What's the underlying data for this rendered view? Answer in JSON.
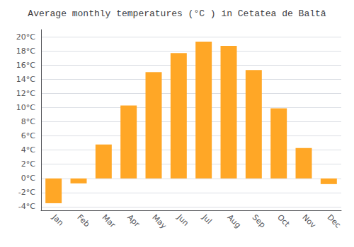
{
  "chart_data": {
    "type": "bar",
    "title": "Average monthly temperatures (°C ) in Cetatea de Baltă",
    "categories": [
      "Jan",
      "Feb",
      "Mar",
      "Apr",
      "May",
      "Jun",
      "Jul",
      "Aug",
      "Sep",
      "Oct",
      "Nov",
      "Dec"
    ],
    "values": [
      -3.5,
      -0.7,
      4.8,
      10.3,
      15.0,
      17.7,
      19.3,
      18.7,
      15.3,
      9.9,
      4.3,
      -0.8
    ],
    "color": "#FFA726",
    "ylim": [
      -4.5,
      21
    ],
    "yticks": [
      {
        "value": -4,
        "label": "-4°C"
      },
      {
        "value": -2,
        "label": "-2°C"
      },
      {
        "value": 0,
        "label": "0°C"
      },
      {
        "value": 2,
        "label": "2°C"
      },
      {
        "value": 4,
        "label": "4°C"
      },
      {
        "value": 6,
        "label": "6°C"
      },
      {
        "value": 8,
        "label": "8°C"
      },
      {
        "value": 10,
        "label": "10°C"
      },
      {
        "value": 12,
        "label": "12°C"
      },
      {
        "value": 14,
        "label": "14°C"
      },
      {
        "value": 16,
        "label": "16°C"
      },
      {
        "value": 18,
        "label": "18°C"
      },
      {
        "value": 20,
        "label": "20°C"
      }
    ],
    "grid": true
  }
}
